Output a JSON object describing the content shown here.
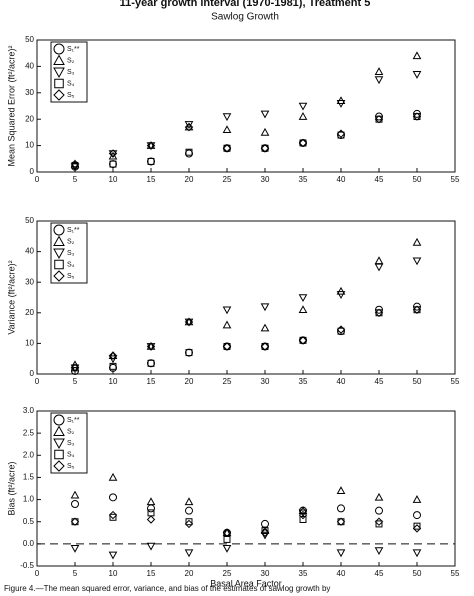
{
  "chart_data": [
    {
      "type": "scatter",
      "title": "11-year growth interval (1970-1981), Treatment 5",
      "subtitle": "Sawlog Growth",
      "y_label": "Mean Squared Error (ft²/acre)²",
      "x": [
        5,
        10,
        15,
        20,
        25,
        30,
        35,
        40,
        45,
        50
      ],
      "xlim": [
        0,
        55
      ],
      "xticks": [
        0,
        5,
        10,
        15,
        20,
        25,
        30,
        35,
        40,
        45,
        50,
        55
      ],
      "ylim": [
        0,
        50
      ],
      "yticks": [
        0,
        10,
        20,
        30,
        40,
        50
      ],
      "series": [
        {
          "name": "S₁**",
          "marker": "circle",
          "color": "#000000",
          "values": [
            2,
            3,
            4,
            7,
            9,
            9,
            11,
            14,
            21,
            22
          ]
        },
        {
          "name": "S₂",
          "marker": "triangle-up",
          "color": "#000000",
          "values": [
            3,
            6,
            10,
            17,
            16,
            15,
            21,
            27,
            38,
            44
          ]
        },
        {
          "name": "S₃",
          "marker": "triangle-down",
          "color": "#000000",
          "values": [
            2,
            7,
            10,
            18,
            21,
            22,
            25,
            26,
            35,
            37
          ]
        },
        {
          "name": "S₄",
          "marker": "square",
          "color": "#000000",
          "values": [
            2.5,
            3,
            4,
            7.5,
            9,
            9,
            11,
            14,
            20,
            21
          ]
        },
        {
          "name": "S₅",
          "marker": "diamond",
          "color": "#000000",
          "values": [
            3,
            7,
            10,
            17,
            9,
            9,
            11,
            14.5,
            20,
            21
          ]
        }
      ]
    },
    {
      "type": "scatter",
      "y_label": "Variance (ft²/acre)²",
      "x": [
        5,
        10,
        15,
        20,
        25,
        30,
        35,
        40,
        45,
        50
      ],
      "xlim": [
        0,
        55
      ],
      "xticks": [
        0,
        5,
        10,
        15,
        20,
        25,
        30,
        35,
        40,
        45,
        50,
        55
      ],
      "ylim": [
        0,
        50
      ],
      "yticks": [
        0,
        10,
        20,
        30,
        40,
        50
      ],
      "series": [
        {
          "name": "S₁**",
          "marker": "circle",
          "color": "#000000",
          "values": [
            1,
            2,
            3.5,
            7,
            9,
            9,
            11,
            14,
            21,
            22
          ]
        },
        {
          "name": "S₂",
          "marker": "triangle-up",
          "color": "#000000",
          "values": [
            3,
            6,
            9,
            17,
            16,
            15,
            21,
            27,
            37,
            43
          ]
        },
        {
          "name": "S₃",
          "marker": "triangle-down",
          "color": "#000000",
          "values": [
            2,
            5,
            9,
            17,
            21,
            22,
            25,
            26,
            35,
            37
          ]
        },
        {
          "name": "S₄",
          "marker": "square",
          "color": "#000000",
          "values": [
            2,
            2.5,
            3.5,
            7,
            9,
            9,
            11,
            14,
            20,
            21
          ]
        },
        {
          "name": "S₅",
          "marker": "diamond",
          "color": "#000000",
          "values": [
            2,
            6,
            9,
            17,
            9,
            9,
            11,
            14.5,
            20,
            21
          ]
        }
      ]
    },
    {
      "type": "scatter",
      "y_label": "Bias (ft²/acre)",
      "x_label": "Basal Area Factor",
      "x": [
        5,
        10,
        15,
        20,
        25,
        30,
        35,
        40,
        45,
        50
      ],
      "xlim": [
        0,
        55
      ],
      "xticks": [
        0,
        5,
        10,
        15,
        20,
        25,
        30,
        35,
        40,
        45,
        50,
        55
      ],
      "ylim": [
        -0.5,
        3
      ],
      "yticks": [
        -0.5,
        {
          "value": 0,
          "label": "0.0"
        },
        0.5,
        {
          "value": 1,
          "label": "1.0"
        },
        1.5,
        {
          "value": 2,
          "label": "2.0"
        },
        2.5,
        {
          "value": 3,
          "label": "3.0"
        }
      ],
      "reference_line": 0,
      "series": [
        {
          "name": "S₁**",
          "marker": "circle",
          "color": "#000000",
          "values": [
            0.9,
            1.05,
            0.8,
            0.75,
            0.25,
            0.45,
            0.75,
            0.8,
            0.75,
            0.65
          ]
        },
        {
          "name": "S₂",
          "marker": "triangle-up",
          "color": "#000000",
          "values": [
            1.1,
            1.5,
            0.95,
            0.95,
            0.25,
            0.3,
            0.75,
            1.2,
            1.05,
            1.0
          ]
        },
        {
          "name": "S₃",
          "marker": "triangle-down",
          "color": "#000000",
          "values": [
            -0.1,
            -0.25,
            -0.05,
            -0.2,
            -0.1,
            0.2,
            0.7,
            -0.2,
            -0.15,
            -0.2
          ]
        },
        {
          "name": "S₄",
          "marker": "square",
          "color": "#000000",
          "values": [
            0.5,
            0.6,
            0.7,
            0.5,
            0.1,
            0.3,
            0.55,
            0.5,
            0.45,
            0.4
          ]
        },
        {
          "name": "S₅",
          "marker": "diamond",
          "color": "#000000",
          "values": [
            0.5,
            0.65,
            0.55,
            0.45,
            0.25,
            0.25,
            0.65,
            0.5,
            0.5,
            0.35
          ]
        }
      ]
    }
  ],
  "caption": "Figure 4.—The mean squared error, variance, and bias of the estimates of sawlog growth by"
}
